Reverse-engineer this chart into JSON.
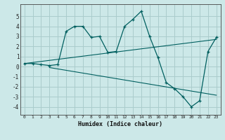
{
  "xlabel": "Humidex (Indice chaleur)",
  "xlim": [
    -0.5,
    23.5
  ],
  "ylim": [
    -4.8,
    6.2
  ],
  "xticks": [
    0,
    1,
    2,
    3,
    4,
    5,
    6,
    7,
    8,
    9,
    10,
    11,
    12,
    13,
    14,
    15,
    16,
    17,
    18,
    19,
    20,
    21,
    22,
    23
  ],
  "yticks": [
    -4,
    -3,
    -2,
    -1,
    0,
    1,
    2,
    3,
    4,
    5
  ],
  "bg_color": "#cce8e8",
  "grid_color": "#aacccc",
  "line_color": "#005f5f",
  "main_x": [
    0,
    1,
    2,
    3,
    4,
    5,
    6,
    7,
    8,
    9,
    10,
    11,
    12,
    13,
    14,
    15,
    16,
    17,
    18,
    19,
    20,
    21,
    22,
    23
  ],
  "main_y": [
    0.3,
    0.3,
    0.2,
    0.1,
    0.2,
    3.5,
    4.0,
    4.0,
    2.9,
    3.0,
    1.4,
    1.5,
    4.0,
    4.7,
    5.5,
    3.0,
    0.9,
    -1.6,
    -2.2,
    -3.0,
    -4.0,
    -3.4,
    1.5,
    2.9
  ],
  "line2_x": [
    0,
    23
  ],
  "line2_y": [
    0.3,
    2.7
  ],
  "line3_x": [
    3,
    23
  ],
  "line3_y": [
    -0.1,
    -2.85
  ]
}
